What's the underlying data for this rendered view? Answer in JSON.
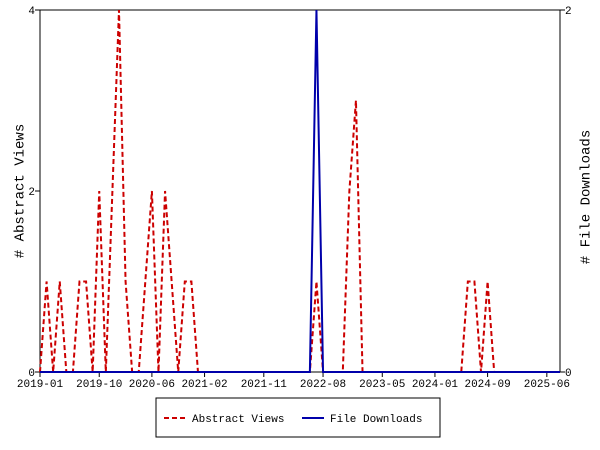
{
  "chart_data": {
    "type": "line",
    "x": [
      "2019-01",
      "2019-02",
      "2019-03",
      "2019-04",
      "2019-05",
      "2019-06",
      "2019-07",
      "2019-08",
      "2019-09",
      "2019-10",
      "2019-11",
      "2019-12",
      "2020-01",
      "2020-02",
      "2020-03",
      "2020-04",
      "2020-05",
      "2020-06",
      "2020-07",
      "2020-08",
      "2020-09",
      "2020-10",
      "2020-11",
      "2020-12",
      "2021-01",
      "2021-02",
      "2021-03",
      "2021-04",
      "2021-05",
      "2021-06",
      "2021-07",
      "2021-08",
      "2021-09",
      "2021-10",
      "2021-11",
      "2021-12",
      "2022-01",
      "2022-02",
      "2022-03",
      "2022-04",
      "2022-05",
      "2022-06",
      "2022-07",
      "2022-08",
      "2022-09",
      "2022-10",
      "2022-11",
      "2022-12",
      "2023-01",
      "2023-02",
      "2023-03",
      "2023-04",
      "2023-05",
      "2023-06",
      "2023-07",
      "2023-08",
      "2023-09",
      "2023-10",
      "2023-11",
      "2023-12",
      "2024-01",
      "2024-02",
      "2024-03",
      "2024-04",
      "2024-05",
      "2024-06",
      "2024-07",
      "2024-08",
      "2024-09",
      "2024-10",
      "2024-11",
      "2024-12",
      "2025-01",
      "2025-02",
      "2025-03",
      "2025-04",
      "2025-05",
      "2025-06",
      "2025-07",
      "2025-08"
    ],
    "series": [
      {
        "name": "Abstract Views",
        "color": "#cc0000",
        "dashed": true,
        "values": [
          0,
          1,
          0,
          1,
          0,
          0,
          1,
          1,
          0,
          2,
          0,
          2,
          4,
          1,
          0,
          0,
          1,
          2,
          0,
          2,
          1,
          0,
          1,
          1,
          0,
          0,
          0,
          0,
          0,
          0,
          0,
          0,
          0,
          0,
          0,
          0,
          0,
          0,
          0,
          0,
          0,
          0,
          1,
          0,
          0,
          0,
          0,
          2,
          3,
          0,
          0,
          0,
          0,
          0,
          0,
          0,
          0,
          0,
          0,
          0,
          0,
          0,
          0,
          0,
          0,
          1,
          1,
          0,
          1,
          0,
          0,
          0,
          0,
          0,
          0,
          0,
          0,
          0,
          0,
          0
        ]
      },
      {
        "name": "File Downloads",
        "color": "#0000aa",
        "axis": "y2",
        "values": [
          0,
          0,
          0,
          0,
          0,
          0,
          0,
          0,
          0,
          0,
          0,
          0,
          0,
          0,
          0,
          0,
          0,
          0,
          0,
          0,
          0,
          0,
          0,
          0,
          0,
          0,
          0,
          0,
          0,
          0,
          0,
          0,
          0,
          0,
          0,
          0,
          0,
          0,
          0,
          0,
          0,
          0,
          2,
          0,
          0,
          0,
          0,
          0,
          0,
          0,
          0,
          0,
          0,
          0,
          0,
          0,
          0,
          0,
          0,
          0,
          0,
          0,
          0,
          0,
          0,
          0,
          0,
          0,
          0,
          0,
          0,
          0,
          0,
          0,
          0,
          0,
          0,
          0,
          0,
          0
        ]
      }
    ],
    "xlim": [
      "2019-01",
      "2025-08"
    ],
    "xticks": [
      "2019-01",
      "2019-10",
      "2020-06",
      "2021-02",
      "2021-11",
      "2022-08",
      "2023-05",
      "2024-01",
      "2024-09",
      "2025-06"
    ],
    "ylim": [
      0,
      4
    ],
    "yticks": [
      0,
      2,
      4
    ],
    "y2lim": [
      0,
      2
    ],
    "y2ticks": [
      0,
      2
    ],
    "ylabel": "# Abstract Views",
    "y2label": "# File Downloads"
  }
}
